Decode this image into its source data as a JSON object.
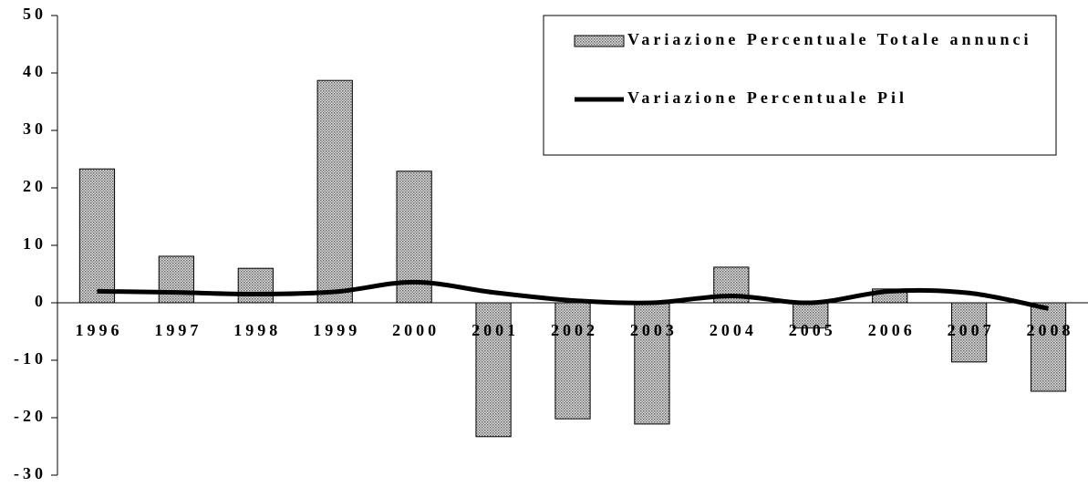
{
  "chart_data": {
    "type": "combo",
    "categories": [
      "1996",
      "1997",
      "1998",
      "1999",
      "2000",
      "2001",
      "2002",
      "2003",
      "2004",
      "2005",
      "2006",
      "2007",
      "2008"
    ],
    "series": [
      {
        "name": "Variazione Percentuale Totale annunci",
        "type": "bar",
        "color": "#a8a8a8",
        "values": [
          23.3,
          8.1,
          6.0,
          38.7,
          22.9,
          -23.3,
          -20.2,
          -21.1,
          6.2,
          -4.4,
          2.4,
          -10.3,
          -15.4
        ]
      },
      {
        "name": "Variazione Percentuale Pil",
        "type": "line",
        "color": "#000000",
        "values": [
          2.0,
          1.8,
          1.5,
          1.9,
          3.6,
          1.8,
          0.4,
          0.0,
          1.2,
          0.0,
          2.0,
          1.7,
          -1.0
        ]
      }
    ],
    "ylim": [
      -30,
      50
    ],
    "yticks": [
      -30,
      -20,
      -10,
      0,
      10,
      20,
      30,
      40,
      50
    ],
    "grid": false,
    "legend": "top-right"
  }
}
